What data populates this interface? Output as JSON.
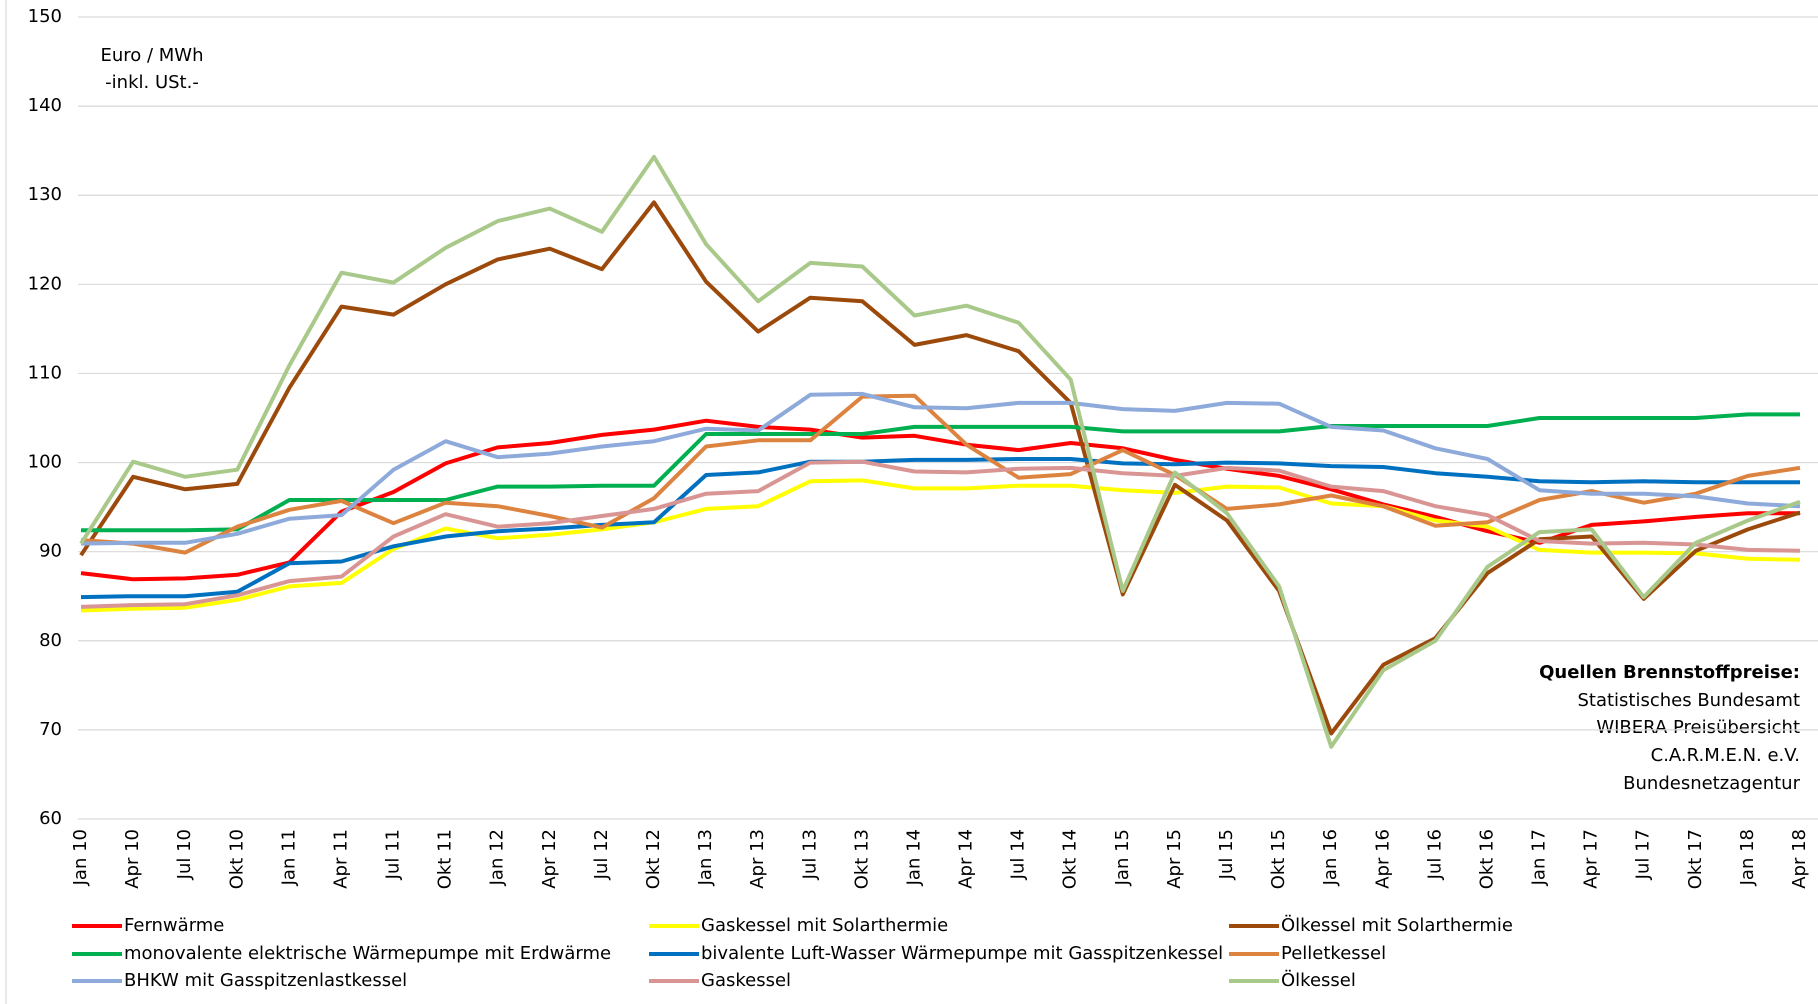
{
  "chart_data": {
    "type": "line",
    "unit_label": [
      "Euro / MWh",
      "-inkl. USt.-"
    ],
    "source_title": "Quellen Brennstoffpreise:",
    "sources": [
      "Statistisches Bundesamt",
      "WIBERA Preisübersicht",
      "C.A.R.M.E.N. e.V.",
      "Bundesnetzagentur"
    ],
    "categories": [
      "Jan 10",
      "Apr 10",
      "Jul 10",
      "Okt 10",
      "Jan 11",
      "Apr 11",
      "Jul 11",
      "Okt 11",
      "Jan 12",
      "Apr 12",
      "Jul 12",
      "Okt 12",
      "Jan 13",
      "Apr 13",
      "Jul 13",
      "Okt 13",
      "Jan 14",
      "Apr 14",
      "Jul 14",
      "Okt 14",
      "Jan 15",
      "Apr 15",
      "Jul 15",
      "Okt 15",
      "Jan 16",
      "Apr 16",
      "Jul 16",
      "Okt 16",
      "Jan 17",
      "Apr 17",
      "Jul 17",
      "Okt 17",
      "Jan 18",
      "Apr 18"
    ],
    "ylim": [
      60,
      150
    ],
    "yticks": [
      60,
      70,
      80,
      90,
      100,
      110,
      120,
      130,
      140,
      150
    ],
    "grid": true,
    "series": [
      {
        "name": "Fernwärme",
        "color": "#ff0000",
        "values": [
          87.6,
          86.9,
          87.0,
          87.4,
          88.8,
          94.5,
          96.7,
          99.9,
          101.7,
          102.2,
          103.1,
          103.7,
          104.7,
          104.0,
          103.7,
          102.8,
          103.0,
          102.0,
          101.4,
          102.2,
          101.6,
          100.3,
          99.3,
          98.5,
          97.0,
          95.3,
          93.9,
          92.3,
          91.0,
          93.0,
          93.4,
          93.9,
          94.3,
          94.3
        ]
      },
      {
        "name": "Gaskessel mit Solarthermie",
        "color": "#ffff00",
        "values": [
          83.4,
          83.6,
          83.7,
          84.6,
          86.1,
          86.5,
          90.3,
          92.6,
          91.5,
          91.9,
          92.5,
          93.3,
          94.8,
          95.1,
          97.9,
          98.0,
          97.1,
          97.1,
          97.4,
          97.4,
          96.9,
          96.6,
          97.3,
          97.2,
          95.4,
          95.1,
          93.5,
          92.8,
          90.2,
          89.9,
          89.9,
          89.8,
          89.2,
          89.1
        ]
      },
      {
        "name": "Ölkessel mit Solarthermie",
        "color": "#9c4a0c",
        "values": [
          89.6,
          98.4,
          97.0,
          97.6,
          108.4,
          117.5,
          116.6,
          120.0,
          122.8,
          124.0,
          121.7,
          129.2,
          120.3,
          114.7,
          118.5,
          118.1,
          113.2,
          114.3,
          112.5,
          106.7,
          85.2,
          97.5,
          93.5,
          85.6,
          69.6,
          77.3,
          80.3,
          87.6,
          91.4,
          91.7,
          84.7,
          90.1,
          92.5,
          94.4
        ]
      },
      {
        "name": "monovalente elektrische Wärmepumpe mit Erdwärme",
        "color": "#00b050",
        "values": [
          92.4,
          92.4,
          92.4,
          92.5,
          95.8,
          95.8,
          95.8,
          95.8,
          97.3,
          97.3,
          97.4,
          97.4,
          103.2,
          103.2,
          103.2,
          103.2,
          104.0,
          104.0,
          104.0,
          104.0,
          103.5,
          103.5,
          103.5,
          103.5,
          104.1,
          104.1,
          104.1,
          104.1,
          105.0,
          105.0,
          105.0,
          105.0,
          105.4,
          105.4
        ]
      },
      {
        "name": "bivalente Luft-Wasser Wärmepumpe mit Gasspitzenkessel",
        "color": "#0070c0",
        "values": [
          84.9,
          85.0,
          85.0,
          85.5,
          88.7,
          88.9,
          90.6,
          91.7,
          92.3,
          92.6,
          93.0,
          93.3,
          98.6,
          98.9,
          100.1,
          100.1,
          100.3,
          100.3,
          100.4,
          100.4,
          99.9,
          99.8,
          100.0,
          99.9,
          99.6,
          99.5,
          98.8,
          98.4,
          97.9,
          97.8,
          97.9,
          97.8,
          97.8,
          97.8
        ]
      },
      {
        "name": "Pelletkessel",
        "color": "#dd8340",
        "values": [
          91.3,
          90.9,
          89.9,
          92.8,
          94.7,
          95.7,
          93.2,
          95.5,
          95.1,
          94.0,
          92.7,
          96.0,
          101.8,
          102.5,
          102.5,
          107.4,
          107.5,
          102.0,
          98.3,
          98.7,
          101.4,
          98.6,
          94.8,
          95.3,
          96.3,
          95.1,
          92.9,
          93.3,
          95.8,
          96.8,
          95.5,
          96.5,
          98.5,
          99.4
        ]
      },
      {
        "name": "BHKW mit Gasspitzenlastkessel",
        "color": "#8eaadb",
        "values": [
          90.9,
          91.0,
          91.0,
          92.0,
          93.7,
          94.1,
          99.2,
          102.4,
          100.6,
          101.0,
          101.8,
          102.4,
          103.8,
          103.6,
          107.6,
          107.7,
          106.2,
          106.1,
          106.7,
          106.7,
          106.0,
          105.8,
          106.7,
          106.6,
          104.0,
          103.6,
          101.6,
          100.4,
          96.9,
          96.5,
          96.5,
          96.2,
          95.4,
          95.1
        ]
      },
      {
        "name": "Gaskessel",
        "color": "#d99594",
        "values": [
          83.8,
          84.0,
          84.1,
          85.1,
          86.7,
          87.2,
          91.7,
          94.2,
          92.8,
          93.2,
          94.0,
          94.8,
          96.5,
          96.8,
          100.0,
          100.1,
          99.0,
          98.9,
          99.3,
          99.4,
          98.8,
          98.5,
          99.4,
          99.1,
          97.3,
          96.8,
          95.1,
          94.1,
          91.2,
          90.9,
          91.0,
          90.8,
          90.2,
          90.1
        ]
      },
      {
        "name": "Ölkessel",
        "color": "#a9c98a",
        "values": [
          90.9,
          100.1,
          98.4,
          99.2,
          110.9,
          121.3,
          120.2,
          124.1,
          127.1,
          128.5,
          125.9,
          134.3,
          124.5,
          118.1,
          122.4,
          122.0,
          116.5,
          117.6,
          115.7,
          109.3,
          85.6,
          98.9,
          94.3,
          86.1,
          68.1,
          76.7,
          80.0,
          88.3,
          92.2,
          92.5,
          84.9,
          91.0,
          93.5,
          95.6
        ]
      }
    ]
  }
}
